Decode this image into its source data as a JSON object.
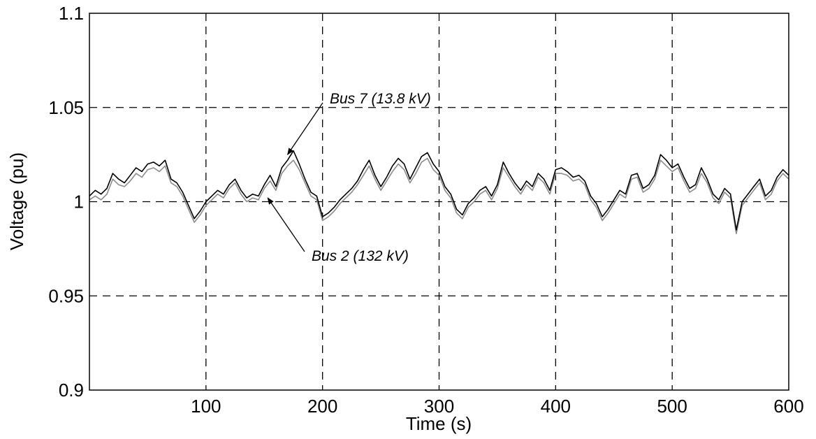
{
  "chart_data": {
    "type": "line",
    "title": "",
    "xlabel": "Time (s)",
    "ylabel": "Voltage (pu)",
    "xlim": [
      0,
      600
    ],
    "ylim": [
      0.9,
      1.1
    ],
    "x_ticks": [
      100,
      200,
      300,
      400,
      500,
      600
    ],
    "x_tick_labels": [
      "100",
      "200",
      "300",
      "400",
      "500",
      "600"
    ],
    "y_ticks": [
      0.9,
      0.95,
      1.0,
      1.05,
      1.1
    ],
    "y_tick_labels": [
      "0.9",
      "0.95",
      "1",
      "1.05",
      "1.1"
    ],
    "grid": true,
    "grid_style": "dashed",
    "series": [
      {
        "name": "Bus 7 (13.8 kV)",
        "color": "#000000",
        "x": [
          0,
          5,
          10,
          15,
          20,
          25,
          30,
          35,
          40,
          45,
          50,
          55,
          60,
          65,
          70,
          75,
          80,
          85,
          90,
          95,
          100,
          105,
          110,
          115,
          120,
          125,
          130,
          135,
          140,
          145,
          150,
          155,
          160,
          165,
          170,
          175,
          180,
          185,
          190,
          195,
          200,
          205,
          210,
          215,
          220,
          225,
          230,
          235,
          240,
          245,
          250,
          255,
          260,
          265,
          270,
          275,
          280,
          285,
          290,
          295,
          300,
          305,
          310,
          315,
          320,
          325,
          330,
          335,
          340,
          345,
          350,
          355,
          360,
          365,
          370,
          375,
          380,
          385,
          390,
          395,
          400,
          405,
          410,
          415,
          420,
          425,
          430,
          435,
          440,
          445,
          450,
          455,
          460,
          465,
          470,
          475,
          480,
          485,
          490,
          495,
          500,
          505,
          510,
          515,
          520,
          525,
          530,
          535,
          540,
          545,
          550,
          555,
          560,
          565,
          570,
          575,
          580,
          585,
          590,
          595,
          600
        ],
        "y": [
          1.003,
          1.006,
          1.004,
          1.007,
          1.015,
          1.012,
          1.01,
          1.014,
          1.018,
          1.016,
          1.02,
          1.021,
          1.019,
          1.022,
          1.012,
          1.01,
          1.005,
          0.998,
          0.991,
          0.995,
          1.0,
          1.003,
          1.006,
          1.004,
          1.009,
          1.012,
          1.006,
          1.002,
          1.004,
          1.003,
          1.009,
          1.014,
          1.008,
          1.018,
          1.022,
          1.027,
          1.02,
          1.012,
          1.005,
          1.003,
          0.992,
          0.994,
          0.997,
          1.001,
          1.004,
          1.007,
          1.011,
          1.017,
          1.022,
          1.014,
          1.008,
          1.013,
          1.019,
          1.023,
          1.02,
          1.012,
          1.018,
          1.024,
          1.026,
          1.02,
          1.016,
          1.008,
          1.004,
          0.996,
          0.993,
          0.999,
          1.002,
          1.006,
          1.008,
          1.003,
          1.009,
          1.021,
          1.015,
          1.01,
          1.006,
          1.011,
          1.008,
          1.015,
          1.012,
          1.006,
          1.017,
          1.018,
          1.016,
          1.013,
          1.014,
          1.011,
          1.003,
          0.999,
          0.992,
          0.996,
          1.001,
          1.006,
          1.004,
          1.014,
          1.015,
          1.007,
          1.009,
          1.014,
          1.025,
          1.022,
          1.018,
          1.02,
          1.013,
          1.007,
          1.009,
          1.018,
          1.012,
          1.004,
          1.001,
          1.007,
          1.004,
          0.985,
          1.0,
          1.004,
          1.008,
          1.012,
          1.003,
          1.006,
          1.013,
          1.017,
          1.014
        ]
      },
      {
        "name": "Bus 2 (132 kV)",
        "color": "#8c8c8c",
        "x": [
          0,
          5,
          10,
          15,
          20,
          25,
          30,
          35,
          40,
          45,
          50,
          55,
          60,
          65,
          70,
          75,
          80,
          85,
          90,
          95,
          100,
          105,
          110,
          115,
          120,
          125,
          130,
          135,
          140,
          145,
          150,
          155,
          160,
          165,
          170,
          175,
          180,
          185,
          190,
          195,
          200,
          205,
          210,
          215,
          220,
          225,
          230,
          235,
          240,
          245,
          250,
          255,
          260,
          265,
          270,
          275,
          280,
          285,
          290,
          295,
          300,
          305,
          310,
          315,
          320,
          325,
          330,
          335,
          340,
          345,
          350,
          355,
          360,
          365,
          370,
          375,
          380,
          385,
          390,
          395,
          400,
          405,
          410,
          415,
          420,
          425,
          430,
          435,
          440,
          445,
          450,
          455,
          460,
          465,
          470,
          475,
          480,
          485,
          490,
          495,
          500,
          505,
          510,
          515,
          520,
          525,
          530,
          535,
          540,
          545,
          550,
          555,
          560,
          565,
          570,
          575,
          580,
          585,
          590,
          595,
          600
        ],
        "y": [
          1.001,
          1.003,
          1.001,
          1.004,
          1.012,
          1.009,
          1.008,
          1.011,
          1.015,
          1.013,
          1.017,
          1.018,
          1.016,
          1.019,
          1.01,
          1.008,
          1.003,
          0.996,
          0.989,
          0.993,
          0.998,
          1.001,
          1.004,
          1.002,
          1.007,
          1.01,
          1.004,
          1.0,
          1.002,
          1.001,
          1.007,
          1.011,
          1.006,
          1.015,
          1.019,
          1.022,
          1.017,
          1.01,
          1.003,
          1.001,
          0.99,
          0.992,
          0.995,
          0.999,
          1.002,
          1.005,
          1.009,
          1.014,
          1.019,
          1.012,
          1.006,
          1.011,
          1.016,
          1.02,
          1.017,
          1.01,
          1.015,
          1.021,
          1.023,
          1.017,
          1.014,
          1.006,
          1.002,
          0.994,
          0.991,
          0.997,
          1.0,
          1.004,
          1.006,
          1.001,
          1.007,
          1.018,
          1.013,
          1.008,
          1.004,
          1.009,
          1.006,
          1.013,
          1.01,
          1.004,
          1.015,
          1.015,
          1.014,
          1.011,
          1.012,
          1.009,
          1.001,
          0.997,
          0.99,
          0.994,
          0.999,
          1.004,
          1.002,
          1.012,
          1.013,
          1.005,
          1.007,
          1.012,
          1.022,
          1.019,
          1.016,
          1.018,
          1.011,
          1.005,
          1.007,
          1.015,
          1.01,
          1.002,
          0.999,
          1.005,
          1.002,
          0.983,
          0.998,
          1.002,
          1.006,
          1.01,
          1.001,
          1.004,
          1.011,
          1.015,
          1.012
        ]
      }
    ],
    "annotations": [
      {
        "text": "Bus 7 (13.8 kV)",
        "series": "Bus 7 (13.8 kV)",
        "points_to": [
          170,
          1.025
        ]
      },
      {
        "text": "Bus 2 (132 kV)",
        "series": "Bus 2 (132 kV)",
        "points_to": [
          153,
          1.002
        ]
      }
    ]
  }
}
